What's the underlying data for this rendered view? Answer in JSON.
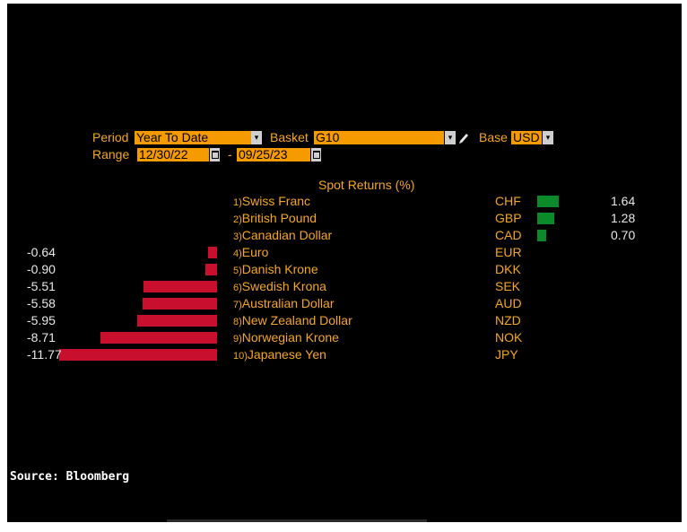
{
  "controls": {
    "period_label": "Period",
    "period_value": "Year To Date",
    "basket_label": "Basket",
    "basket_value": "G10",
    "base_label": "Base",
    "base_value": "USD",
    "range_label": "Range",
    "range_start": "12/30/22",
    "range_separator": "-",
    "range_end": "09/25/23"
  },
  "chart_data": {
    "type": "bar",
    "title": "Spot Returns (%)",
    "categories": [
      "Swiss Franc",
      "British Pound",
      "Canadian Dollar",
      "Euro",
      "Danish Krone",
      "Swedish Krona",
      "Australian Dollar",
      "New Zealand Dollar",
      "Norwegian Krone",
      "Japanese Yen"
    ],
    "indices": [
      "1)",
      "2)",
      "3)",
      "4)",
      "5)",
      "6)",
      "7)",
      "8)",
      "9)",
      "10)"
    ],
    "codes": [
      "CHF",
      "GBP",
      "CAD",
      "EUR",
      "DKK",
      "SEK",
      "AUD",
      "NZD",
      "NOK",
      "JPY"
    ],
    "values": [
      1.64,
      1.28,
      0.7,
      -0.64,
      -0.9,
      -5.51,
      -5.58,
      -5.95,
      -8.71,
      -11.77
    ],
    "value_labels": [
      "1.64",
      "1.28",
      "0.70",
      "-0.64",
      "-0.90",
      "-5.51",
      "-5.58",
      "-5.95",
      "-8.71",
      "-11.77"
    ],
    "colors": {
      "positive": "#0a8a2a",
      "negative": "#c8102e"
    }
  },
  "source": "Source: Bloomberg"
}
